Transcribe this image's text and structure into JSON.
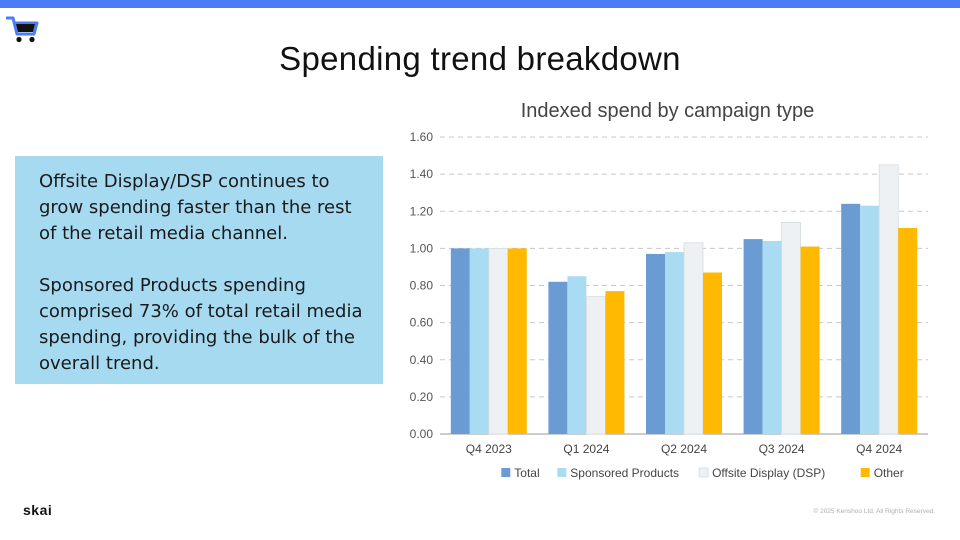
{
  "header": {
    "bar_color": "#4a7cf6",
    "logo_icon": "shopping-cart-icon"
  },
  "title": "Spending trend breakdown",
  "callout": {
    "background": "#a6daf1",
    "paragraphs": [
      "Offsite Display/DSP continues to grow spending faster than the rest of the retail media channel.",
      "Sponsored Products spending comprised 73% of total retail media spending, providing the bulk of the overall trend."
    ]
  },
  "chart_data": {
    "type": "bar",
    "title": "Indexed spend by campaign type",
    "categories": [
      "Q4 2023",
      "Q1 2024",
      "Q2 2024",
      "Q3 2024",
      "Q4 2024"
    ],
    "series": [
      {
        "name": "Total",
        "color": "#6a9bd3",
        "values": [
          1.0,
          0.82,
          0.97,
          1.05,
          1.24
        ]
      },
      {
        "name": "Sponsored Products",
        "color": "#a9dcf3",
        "values": [
          1.0,
          0.85,
          0.98,
          1.04,
          1.23
        ]
      },
      {
        "name": "Offsite Display (DSP)",
        "color": "#eef1f4",
        "values": [
          1.0,
          0.74,
          1.03,
          1.14,
          1.45
        ]
      },
      {
        "name": "Other",
        "color": "#ffb900",
        "values": [
          1.0,
          0.77,
          0.87,
          1.01,
          1.11
        ]
      }
    ],
    "ylim": [
      0,
      1.6
    ],
    "yticks": [
      "0.00",
      "0.20",
      "0.40",
      "0.60",
      "0.80",
      "1.00",
      "1.20",
      "1.40",
      "1.60"
    ],
    "grid": true,
    "legend": "bottom",
    "xlabel": "",
    "ylabel": ""
  },
  "footer": {
    "logo": "skai",
    "copyright": "© 2025 Kenshoo Ltd. All Rights Reserved."
  }
}
